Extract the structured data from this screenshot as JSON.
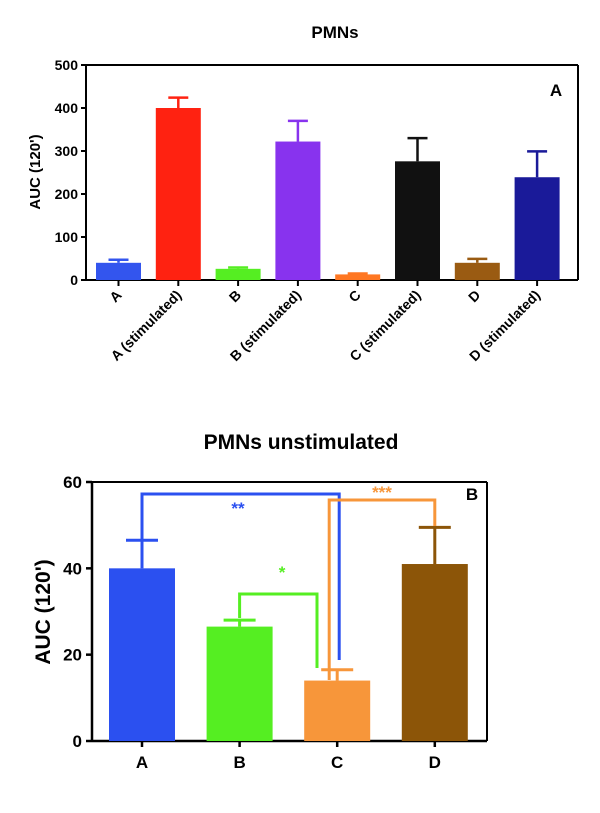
{
  "chart_data": [
    {
      "type": "bar",
      "title": "PMNs",
      "panel_label": "A",
      "ylabel": "AUC (120')",
      "xlabel": "",
      "ylim": [
        0,
        500
      ],
      "yticks": [
        0,
        100,
        200,
        300,
        400,
        500
      ],
      "grid": false,
      "categories": [
        "A",
        "A (stimulated)",
        "B",
        "B (stimulated)",
        "C",
        "C (stimulated)",
        "D",
        "D (stimulated)"
      ],
      "values": [
        40,
        400,
        26,
        322,
        13,
        276,
        40,
        239
      ],
      "errors": [
        7,
        24,
        3,
        48,
        2,
        54,
        9,
        60
      ],
      "colors": [
        "#3355ee",
        "#ff2211",
        "#55ee22",
        "#8833ee",
        "#ff7722",
        "#111111",
        "#9a5b12",
        "#1a1a99"
      ]
    },
    {
      "type": "bar",
      "title": "PMNs unstimulated",
      "panel_label": "B",
      "ylabel": "AUC (120')",
      "xlabel": "",
      "ylim": [
        0,
        60
      ],
      "yticks": [
        0,
        20,
        40,
        60
      ],
      "grid": false,
      "categories": [
        "A",
        "B",
        "C",
        "D"
      ],
      "values": [
        40,
        26.5,
        14,
        41
      ],
      "errors": [
        6.5,
        1.5,
        2.5,
        8.5
      ],
      "colors": [
        "#2b50f0",
        "#55ee22",
        "#f7963a",
        "#8c5508"
      ],
      "significance": [
        {
          "from": "A",
          "to": "C",
          "label": "**",
          "color": "#2b50f0"
        },
        {
          "from": "B",
          "to": "C",
          "label": "*",
          "color": "#55ee22"
        },
        {
          "from": "C",
          "to": "D",
          "label": "***",
          "color": "#f7963a"
        }
      ]
    }
  ]
}
